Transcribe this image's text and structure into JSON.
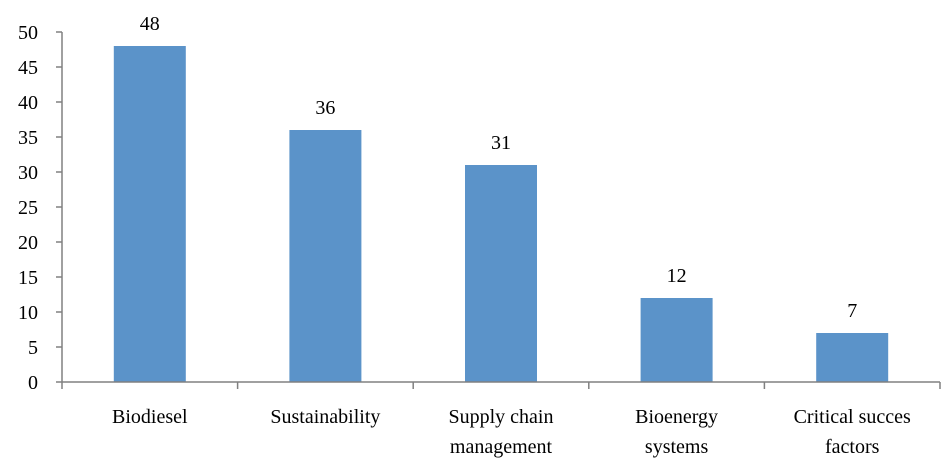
{
  "chart_data": {
    "type": "bar",
    "categories": [
      [
        "Biodiesel"
      ],
      [
        "Sustainability"
      ],
      [
        "Supply chain",
        "management"
      ],
      [
        "Bioenergy",
        "systems"
      ],
      [
        "Critical succes",
        "factors"
      ]
    ],
    "values": [
      48,
      36,
      31,
      12,
      7
    ],
    "data_labels": [
      "48",
      "36",
      "31",
      "12",
      "7"
    ],
    "ylim": [
      0,
      50
    ],
    "yticks": [
      0,
      5,
      10,
      15,
      20,
      25,
      30,
      35,
      40,
      45,
      50
    ],
    "title": "",
    "xlabel": "",
    "ylabel": "",
    "grid": false,
    "colors": {
      "bar": "#5b93c9",
      "axis": "#808080",
      "text": "#000000"
    }
  }
}
